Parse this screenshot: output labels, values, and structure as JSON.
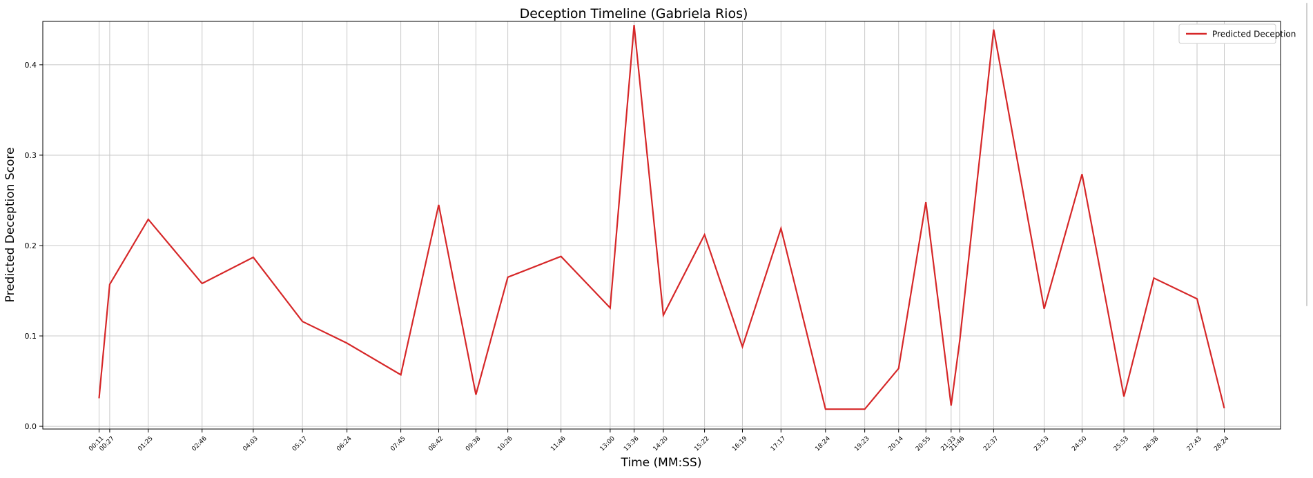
{
  "chart_data": {
    "type": "line",
    "title": "Deception Timeline (Gabriela Rios)",
    "xlabel": "Time (MM:SS)",
    "ylabel": "Predicted Deception Score",
    "ylim": [
      -0.003,
      0.448
    ],
    "yticks": [
      0.0,
      0.1,
      0.2,
      0.3,
      0.4
    ],
    "ytick_labels": [
      "0.0",
      "0.1",
      "0.2",
      "0.3",
      "0.4"
    ],
    "grid": true,
    "legend": "top-right",
    "x": [
      "00:11",
      "00:27",
      "01:25",
      "02:46",
      "04:03",
      "05:17",
      "06:24",
      "07:45",
      "08:42",
      "09:38",
      "10:26",
      "11:46",
      "13:00",
      "13:36",
      "14:20",
      "15:22",
      "16:19",
      "17:17",
      "18:24",
      "19:23",
      "20:14",
      "20:55",
      "21:33",
      "21:46",
      "22:37",
      "23:53",
      "24:50",
      "25:53",
      "26:38",
      "27:43",
      "28:24"
    ],
    "x_seconds": [
      11,
      27,
      85,
      166,
      243,
      317,
      384,
      465,
      522,
      578,
      626,
      706,
      780,
      816,
      860,
      922,
      979,
      1037,
      1104,
      1163,
      1214,
      1255,
      1293,
      1306,
      1357,
      1433,
      1490,
      1553,
      1598,
      1663,
      1704
    ],
    "series": [
      {
        "name": "Predicted Deception",
        "color": "#d62728",
        "values": [
          0.031,
          0.157,
          0.229,
          0.158,
          0.187,
          0.116,
          0.092,
          0.057,
          0.245,
          0.035,
          0.165,
          0.188,
          0.131,
          0.444,
          0.123,
          0.212,
          0.088,
          0.219,
          0.019,
          0.019,
          0.064,
          0.248,
          0.023,
          0.095,
          0.439,
          0.13,
          0.279,
          0.033,
          0.164,
          0.141,
          0.02
        ]
      }
    ]
  }
}
